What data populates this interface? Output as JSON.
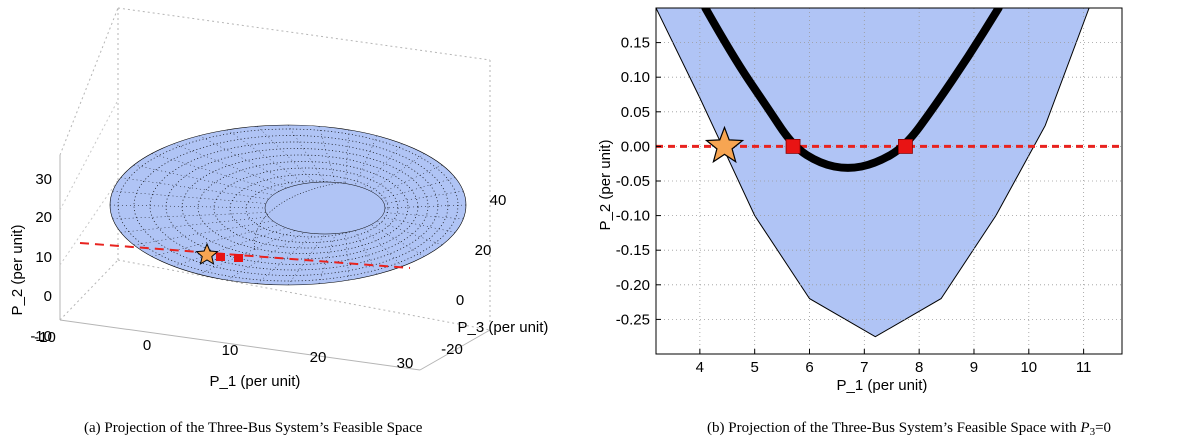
{
  "chart_data": [
    {
      "type": "scatter",
      "view": "3d",
      "xlabel": "P_1 (per unit)",
      "ylabel": "P_2 (per unit)",
      "zlabel": "P_3 (per unit)",
      "xticks": [
        "-10",
        "0",
        "10",
        "20",
        "30"
      ],
      "yticks": [
        "-10",
        "0",
        "10",
        "20",
        "30"
      ],
      "zticks": [
        "-20",
        "0",
        "20",
        "40"
      ],
      "caption": "(a) Projection of the Three-Bus System’s Feasible Space",
      "colors": {
        "surface": "#b0c4f5",
        "points": "#000000",
        "line": "#e8231f",
        "star": "#f7a552"
      }
    },
    {
      "type": "line",
      "xlabel": "P_1 (per unit)",
      "ylabel": "P_2 (per unit)",
      "xlim": [
        3.2,
        11.7
      ],
      "ylim": [
        -0.3,
        0.2
      ],
      "xticks": [
        "4",
        "5",
        "6",
        "7",
        "8",
        "9",
        "10",
        "11"
      ],
      "yticks": [
        "0.15",
        "0.10",
        "0.05",
        "0.00",
        "-0.05",
        "-0.10",
        "-0.15",
        "-0.20",
        "-0.25"
      ],
      "grid": true,
      "feasible_region": {
        "vertex": [
          7.2,
          -0.275
        ],
        "bounds": [
          [
            3.2,
            0.2
          ],
          [
            4.0,
            0.07
          ],
          [
            5.0,
            -0.1
          ],
          [
            6.0,
            -0.22
          ],
          [
            7.2,
            -0.275
          ],
          [
            8.4,
            -0.22
          ],
          [
            9.4,
            -0.1
          ],
          [
            10.3,
            0.03
          ],
          [
            11.1,
            0.2
          ]
        ]
      },
      "series": [
        {
          "points": [
            [
              4.1,
              0.2
            ],
            [
              4.6,
              0.13
            ],
            [
              5.2,
              0.06
            ],
            [
              5.7,
              0.0
            ],
            [
              6.2,
              -0.025
            ],
            [
              6.7,
              -0.033
            ],
            [
              7.2,
              -0.025
            ],
            [
              7.75,
              0.0
            ],
            [
              8.3,
              0.06
            ],
            [
              8.9,
              0.13
            ],
            [
              9.45,
              0.2
            ]
          ]
        }
      ],
      "reference_line_y": 0.0,
      "square_markers": [
        [
          5.7,
          0.0
        ],
        [
          7.75,
          0.0
        ]
      ],
      "star_marker": [
        4.45,
        0.0
      ],
      "caption_prefix": "(b) Projection of the Three-Bus System’s Feasible Space with ",
      "caption_math": "P",
      "caption_sub": "3",
      "caption_suffix": "=0",
      "colors": {
        "region": "#b0c4f5",
        "curve": "#000000",
        "dashed": "#e8231f",
        "square": "#e81414",
        "star": "#f7a552"
      }
    }
  ]
}
